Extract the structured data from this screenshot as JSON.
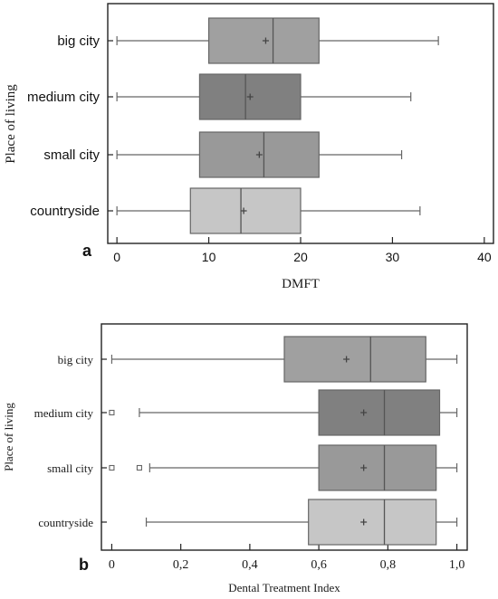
{
  "chart_data": [
    {
      "type": "boxplot",
      "panel_label": "a",
      "xlabel": "DMFT",
      "ylabel": "Place of living",
      "xlim": [
        -1,
        41
      ],
      "xticks": [
        0,
        10,
        20,
        30,
        40
      ],
      "xtick_labels": [
        "0",
        "10",
        "20",
        "30",
        "40"
      ],
      "categories": [
        "big city",
        "medium city",
        "small city",
        "countryside"
      ],
      "boxes": [
        {
          "category": "big city",
          "min": 0,
          "q1": 10,
          "median": 17,
          "q3": 22,
          "max": 35,
          "mean": 16.2,
          "fill": "#a0a0a0",
          "outliers": []
        },
        {
          "category": "medium city",
          "min": 0,
          "q1": 9,
          "median": 14,
          "q3": 20,
          "max": 32,
          "mean": 14.5,
          "fill": "#808080",
          "outliers": []
        },
        {
          "category": "small city",
          "min": 0,
          "q1": 9,
          "median": 16,
          "q3": 22,
          "max": 31,
          "mean": 15.5,
          "fill": "#999999",
          "outliers": []
        },
        {
          "category": "countryside",
          "min": 0,
          "q1": 8,
          "median": 13.5,
          "q3": 20,
          "max": 33,
          "mean": 13.8,
          "fill": "#c6c6c6",
          "outliers": []
        }
      ]
    },
    {
      "type": "boxplot",
      "panel_label": "b",
      "xlabel": "Dental Treatment Index",
      "ylabel": "Place of living",
      "xlim": [
        -0.03,
        1.03
      ],
      "xticks": [
        0,
        0.2,
        0.4,
        0.6,
        0.8,
        1.0
      ],
      "xtick_labels": [
        "0",
        "0,2",
        "0,4",
        "0,6",
        "0,8",
        "1,0"
      ],
      "categories": [
        "big city",
        "medium city",
        "small city",
        "countryside"
      ],
      "boxes": [
        {
          "category": "big city",
          "min": 0,
          "q1": 0.5,
          "median": 0.75,
          "q3": 0.91,
          "max": 1.0,
          "mean": 0.68,
          "fill": "#a0a0a0",
          "outliers": []
        },
        {
          "category": "medium city",
          "min": 0.08,
          "q1": 0.6,
          "median": 0.79,
          "q3": 0.95,
          "max": 1.0,
          "mean": 0.73,
          "fill": "#808080",
          "outliers": [
            0
          ]
        },
        {
          "category": "small city",
          "min": 0.11,
          "q1": 0.6,
          "median": 0.79,
          "q3": 0.94,
          "max": 1.0,
          "mean": 0.73,
          "fill": "#999999",
          "outliers": [
            0,
            0.08
          ]
        },
        {
          "category": "countryside",
          "min": 0.1,
          "q1": 0.57,
          "median": 0.79,
          "q3": 0.94,
          "max": 1.0,
          "mean": 0.73,
          "fill": "#c6c6c6",
          "outliers": []
        }
      ]
    }
  ]
}
